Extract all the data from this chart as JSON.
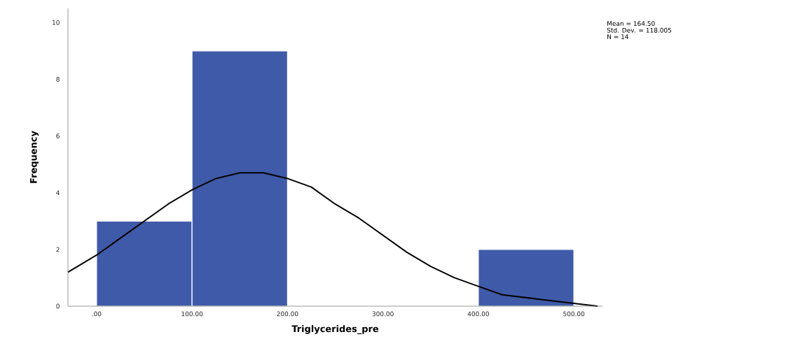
{
  "chart_data": {
    "type": "histogram",
    "xlabel": "Triglycerides_pre",
    "ylabel": "Frequency",
    "bins": [
      0,
      100,
      200,
      300,
      400,
      500
    ],
    "series": [
      {
        "color": "#3f5aa8",
        "values": [
          3,
          9,
          0,
          0,
          2
        ]
      },
      {
        "type": "line",
        "color": "#000000",
        "x": [
          -30,
          0,
          25,
          50,
          75,
          100,
          125,
          150,
          165,
          175,
          200,
          225,
          250,
          275,
          300,
          325,
          350,
          375,
          400,
          425,
          450,
          475,
          500,
          525
        ],
        "values": [
          1.2,
          1.8,
          2.4,
          3.0,
          3.6,
          4.1,
          4.5,
          4.7,
          4.7,
          4.7,
          4.5,
          4.2,
          3.6,
          3.1,
          2.5,
          1.9,
          1.4,
          1.0,
          0.7,
          0.4,
          0.3,
          0.2,
          0.1,
          0.0
        ]
      }
    ],
    "xlim": [
      -30,
      530
    ],
    "ylim": [
      0,
      10.5
    ],
    "xticks": [
      {
        "value": 0,
        "label": ".00"
      },
      {
        "value": 100,
        "label": "100.00"
      },
      {
        "value": 200,
        "label": "200.00"
      },
      {
        "value": 300,
        "label": "300.00"
      },
      {
        "value": 400,
        "label": "400.00"
      },
      {
        "value": 500,
        "label": "500.00"
      }
    ],
    "yticks": [
      0,
      2,
      4,
      6,
      8,
      10
    ],
    "marker": "none",
    "annotations": [
      "Mean = 164.50",
      "Std. Dev. = 118.005",
      "N = 14"
    ]
  }
}
